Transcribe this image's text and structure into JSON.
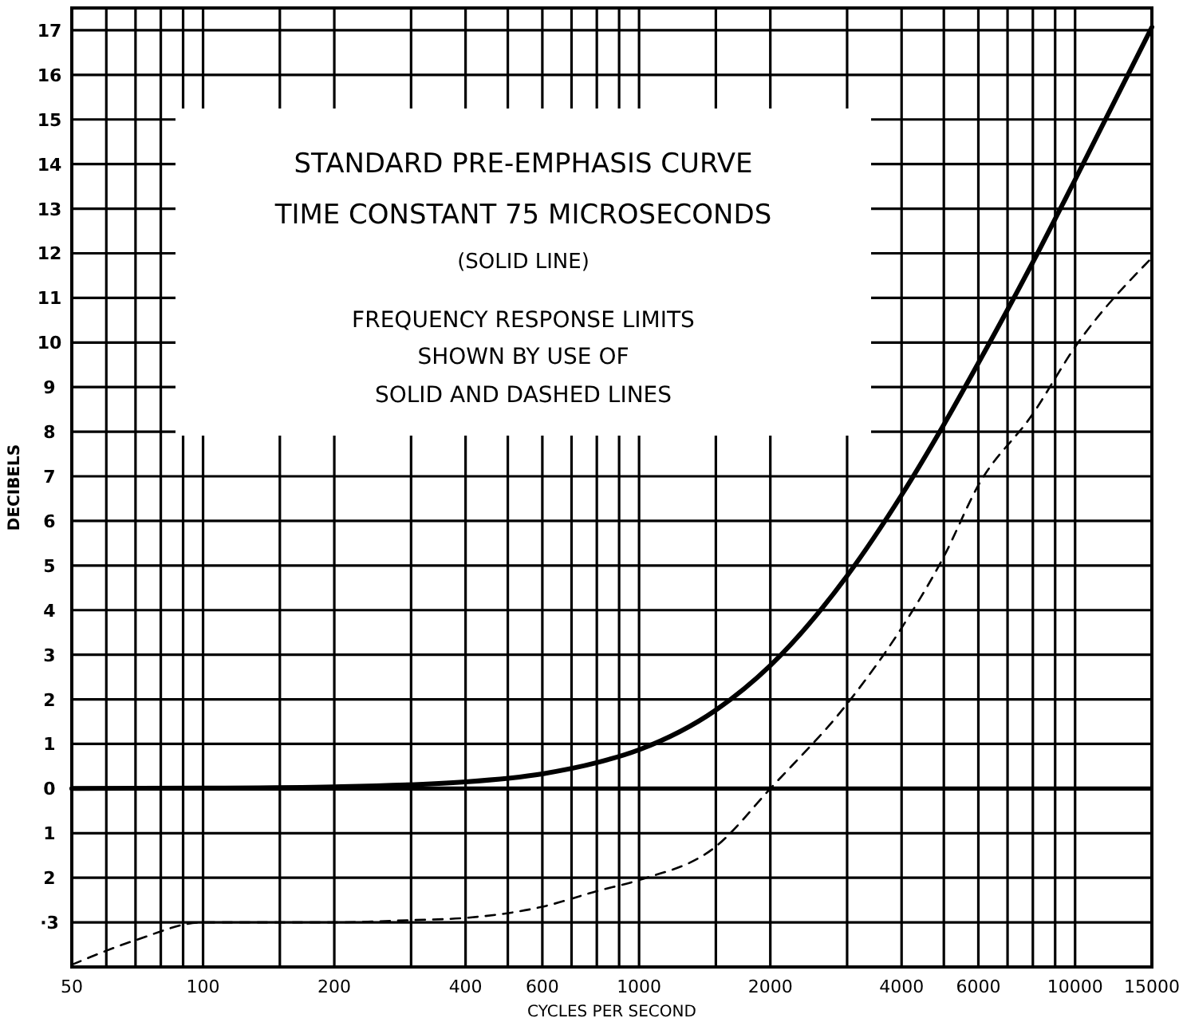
{
  "chart_data": {
    "type": "line",
    "xlabel": "CYCLES PER SECOND",
    "ylabel": "DECIBELS",
    "log": "x",
    "grid": true,
    "marker": "none",
    "xlim": [
      50,
      15000
    ],
    "ylim": [
      -4,
      17.5
    ],
    "xticks": [
      50,
      {
        "value": 60,
        "label": null
      },
      {
        "value": 70,
        "label": null
      },
      {
        "value": 80,
        "label": null
      },
      {
        "value": 90,
        "label": null
      },
      100,
      {
        "value": 150,
        "label": null
      },
      200,
      {
        "value": 300,
        "label": null
      },
      400,
      {
        "value": 500,
        "label": null
      },
      600,
      {
        "value": 700,
        "label": null
      },
      {
        "value": 800,
        "label": null
      },
      {
        "value": 900,
        "label": null
      },
      1000,
      {
        "value": 1500,
        "label": null
      },
      2000,
      {
        "value": 3000,
        "label": null
      },
      4000,
      {
        "value": 5000,
        "label": null
      },
      6000,
      {
        "value": 7000,
        "label": null
      },
      {
        "value": 8000,
        "label": null
      },
      {
        "value": 9000,
        "label": null
      },
      10000,
      15000
    ],
    "yticks": [
      {
        "value": -4,
        "label": null
      },
      {
        "value": -3,
        "label": "·3"
      },
      {
        "value": -2,
        "label": "2"
      },
      {
        "value": -1,
        "label": "1"
      },
      0,
      1,
      2,
      3,
      4,
      5,
      6,
      7,
      8,
      9,
      10,
      11,
      12,
      13,
      14,
      15,
      16,
      17
    ],
    "series": [
      {
        "color": "#000000",
        "line_style": "solid",
        "x": [
          50,
          100,
          200,
          400,
          600,
          800,
          1000,
          1500,
          2000,
          3000,
          4000,
          5000,
          6000,
          8000,
          10000,
          15000
        ],
        "values": [
          0.0,
          0.01,
          0.04,
          0.15,
          0.33,
          0.58,
          0.87,
          1.76,
          2.76,
          4.77,
          6.58,
          8.16,
          9.54,
          11.8,
          13.65,
          17.07
        ]
      },
      {
        "color": "#000000",
        "line_style": "dashed",
        "x": [
          50,
          70,
          100,
          200,
          300,
          400,
          600,
          800,
          1000,
          1500,
          2000,
          3000,
          4000,
          5000,
          6000,
          8000,
          10000,
          15000
        ],
        "values": [
          -3.95,
          -3.4,
          -3.0,
          -3.0,
          -2.95,
          -2.9,
          -2.65,
          -2.3,
          -2.05,
          -1.3,
          0.0,
          1.9,
          3.6,
          5.2,
          6.8,
          8.4,
          9.9,
          11.9
        ]
      }
    ],
    "annotations": [
      "STANDARD PRE-EMPHASIS CURVE",
      "TIME CONSTANT 75 MICROSECONDS",
      "(SOLID LINE)",
      "FREQUENCY RESPONSE LIMITS",
      "SHOWN BY USE OF",
      "SOLID AND DASHED LINES"
    ]
  }
}
